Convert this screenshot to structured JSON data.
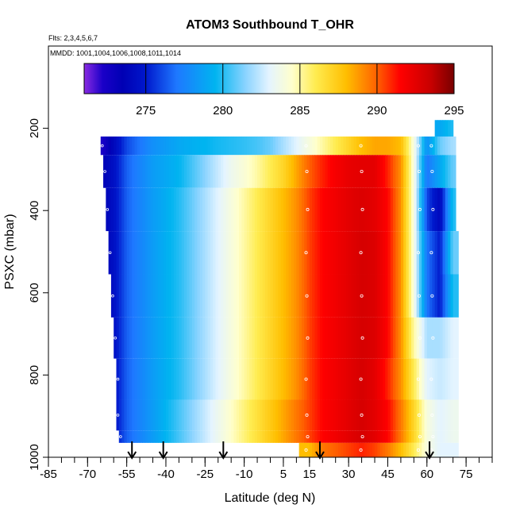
{
  "chart_data": {
    "type": "heatmap",
    "title": "ATOM3 Southbound T_OHR",
    "flights_label": "Flts: 2,3,4,5,6,7",
    "dates_label": "MMDD: 1001,1004,1006,1008,1011,1014",
    "xlabel": "Latitude (deg N)",
    "ylabel": "PSXC (mbar)",
    "xlim": [
      -85,
      85
    ],
    "ylim": [
      1000,
      0
    ],
    "x_ticks": [
      -85,
      -70,
      -55,
      -40,
      -25,
      -10,
      5,
      15,
      30,
      45,
      60,
      75
    ],
    "x_tick_labels": [
      "-85",
      "-70",
      "-55",
      "-40",
      "-25",
      "-10",
      "5",
      "15",
      "30",
      "45",
      "60",
      "75"
    ],
    "y_ticks": [
      200,
      400,
      600,
      800,
      1000
    ],
    "y_tick_labels": [
      "200",
      "400",
      "600",
      "800",
      "1000"
    ],
    "colorbar": {
      "range": [
        271,
        295
      ],
      "ticks": [
        275,
        280,
        285,
        290,
        295
      ],
      "tick_labels": [
        "275",
        "280",
        "285",
        "290",
        "295"
      ]
    },
    "colormap": [
      {
        "value": 271,
        "color": "#8a2be2"
      },
      {
        "value": 272.2,
        "color": "#1a00c8"
      },
      {
        "value": 273.5,
        "color": "#0000b4"
      },
      {
        "value": 275,
        "color": "#0018cc"
      },
      {
        "value": 277,
        "color": "#1e78ff"
      },
      {
        "value": 279.5,
        "color": "#00b4f0"
      },
      {
        "value": 281.5,
        "color": "#8cd4ff"
      },
      {
        "value": 283,
        "color": "#e4f4ff"
      },
      {
        "value": 284.5,
        "color": "#ffffcc"
      },
      {
        "value": 286,
        "color": "#ffec50"
      },
      {
        "value": 288,
        "color": "#ffbe00"
      },
      {
        "value": 290,
        "color": "#ff6000"
      },
      {
        "value": 291.5,
        "color": "#ff0000"
      },
      {
        "value": 293.5,
        "color": "#c80000"
      },
      {
        "value": 295,
        "color": "#780000"
      }
    ],
    "profile_lat_markers": [
      -53,
      -41,
      -18,
      19,
      61
    ],
    "latitudes": [
      -65,
      -60,
      -55,
      -50,
      -45,
      -40,
      -35,
      -30,
      -25,
      -20,
      -15,
      -10,
      -5,
      0,
      5,
      10,
      15,
      20,
      25,
      30,
      35,
      40,
      45,
      50,
      55,
      60,
      65,
      70
    ],
    "series": [
      {
        "name": "p250",
        "p_top": 220,
        "p_bot": 265,
        "lat_min": -65,
        "lat_max": 71,
        "values": [
          272.0,
          274.0,
          276.0,
          277.0,
          278.0,
          278.5,
          279.0,
          279.3,
          279.5,
          279.8,
          280.0,
          280.2,
          280.5,
          281.0,
          282.0,
          283.0,
          284.0,
          285.0,
          286.0,
          287.0,
          288.0,
          288.5,
          288.5,
          288.0,
          284.0,
          278.0,
          281.0,
          282.0
        ]
      },
      {
        "name": "p300",
        "p_top": 265,
        "p_bot": 345,
        "lat_min": -64,
        "lat_max": 71,
        "values": [
          273.5,
          274.5,
          276.5,
          277.5,
          278.5,
          279.0,
          279.5,
          280.5,
          281.5,
          282.5,
          283.5,
          284.2,
          285.0,
          286.0,
          287.0,
          288.5,
          290.0,
          291.0,
          291.8,
          292.3,
          292.5,
          292.5,
          291.0,
          289.0,
          284.0,
          277.0,
          279.0,
          281.0
        ]
      },
      {
        "name": "p400",
        "p_top": 345,
        "p_bot": 450,
        "lat_min": -63,
        "lat_max": 71,
        "values": [
          273.5,
          274.5,
          276.5,
          277.5,
          278.5,
          279.2,
          280.0,
          281.0,
          282.0,
          283.0,
          284.0,
          285.0,
          286.0,
          287.0,
          288.0,
          289.0,
          290.5,
          291.5,
          292.0,
          292.5,
          292.8,
          292.5,
          291.5,
          289.0,
          284.0,
          276.0,
          274.0,
          280.0
        ]
      },
      {
        "name": "p500",
        "p_top": 450,
        "p_bot": 555,
        "lat_min": -62,
        "lat_max": 72,
        "values": [
          273.5,
          274.5,
          276.5,
          277.5,
          278.5,
          279.3,
          280.0,
          281.0,
          282.0,
          283.0,
          284.0,
          285.0,
          286.0,
          287.0,
          288.0,
          289.0,
          290.5,
          291.5,
          292.0,
          292.5,
          293.0,
          292.8,
          291.5,
          289.0,
          284.0,
          277.0,
          275.0,
          281.0
        ]
      },
      {
        "name": "p600",
        "p_top": 555,
        "p_bot": 660,
        "lat_min": -61,
        "lat_max": 72,
        "values": [
          273.5,
          274.5,
          276.5,
          277.5,
          278.5,
          279.3,
          280.0,
          281.0,
          282.0,
          283.0,
          284.0,
          285.0,
          286.0,
          287.0,
          288.0,
          289.0,
          290.5,
          291.5,
          292.0,
          292.5,
          293.0,
          292.8,
          291.5,
          289.0,
          284.0,
          277.0,
          275.0,
          280.0
        ]
      },
      {
        "name": "p700",
        "p_top": 660,
        "p_bot": 760,
        "lat_min": -60,
        "lat_max": 72,
        "values": [
          273.5,
          274.5,
          276.5,
          277.5,
          278.5,
          279.3,
          280.0,
          281.0,
          282.0,
          283.0,
          284.0,
          285.0,
          286.0,
          287.0,
          288.0,
          289.0,
          290.5,
          291.5,
          292.0,
          292.5,
          293.0,
          292.8,
          291.5,
          289.0,
          285.0,
          282.0,
          282.0,
          283.0
        ]
      },
      {
        "name": "p800",
        "p_top": 760,
        "p_bot": 860,
        "lat_min": -59,
        "lat_max": 72,
        "values": [
          273.5,
          274.5,
          276.5,
          277.5,
          278.5,
          279.3,
          280.0,
          281.0,
          282.0,
          283.0,
          284.0,
          285.0,
          286.0,
          287.0,
          288.0,
          289.0,
          290.5,
          291.5,
          292.0,
          292.5,
          293.0,
          292.5,
          291.0,
          289.0,
          286.0,
          283.0,
          282.5,
          283.0
        ]
      },
      {
        "name": "p900",
        "p_top": 860,
        "p_bot": 935,
        "lat_min": -59,
        "lat_max": 72,
        "values": [
          273.5,
          274.5,
          276.5,
          277.5,
          278.5,
          279.5,
          280.5,
          281.5,
          282.5,
          283.5,
          284.5,
          285.5,
          286.5,
          287.5,
          288.5,
          289.5,
          290.5,
          291.5,
          292.0,
          292.5,
          293.0,
          292.5,
          291.5,
          289.5,
          287.0,
          284.0,
          283.0,
          283.5
        ]
      },
      {
        "name": "p950",
        "p_top": 935,
        "p_bot": 965,
        "lat_min": -58,
        "lat_max": 72,
        "values": [
          273.5,
          274.5,
          276.5,
          277.5,
          278.5,
          279.5,
          280.5,
          281.5,
          282.5,
          283.5,
          284.5,
          285.5,
          286.5,
          287.5,
          288.5,
          289.5,
          290.5,
          291.5,
          292.0,
          292.5,
          293.0,
          292.5,
          291.5,
          289.5,
          287.0,
          284.0,
          283.0,
          283.5
        ]
      },
      {
        "name": "p990",
        "p_top": 965,
        "p_bot": 1000,
        "lat_min": 11,
        "lat_max": 72,
        "values": [
          null,
          null,
          null,
          null,
          null,
          null,
          null,
          null,
          null,
          null,
          null,
          null,
          null,
          null,
          null,
          null,
          288.0,
          289.5,
          290.0,
          290.5,
          291.0,
          290.5,
          289.5,
          288.0,
          286.0,
          284.0,
          283.0,
          283.0
        ]
      },
      {
        "name": "p170",
        "p_top": 180,
        "p_bot": 220,
        "lat_min": 63,
        "lat_max": 70,
        "values": [
          null,
          null,
          null,
          null,
          null,
          null,
          null,
          null,
          null,
          null,
          null,
          null,
          null,
          null,
          null,
          null,
          null,
          null,
          null,
          null,
          null,
          null,
          null,
          null,
          null,
          null,
          279.0,
          280.0
        ]
      }
    ]
  }
}
